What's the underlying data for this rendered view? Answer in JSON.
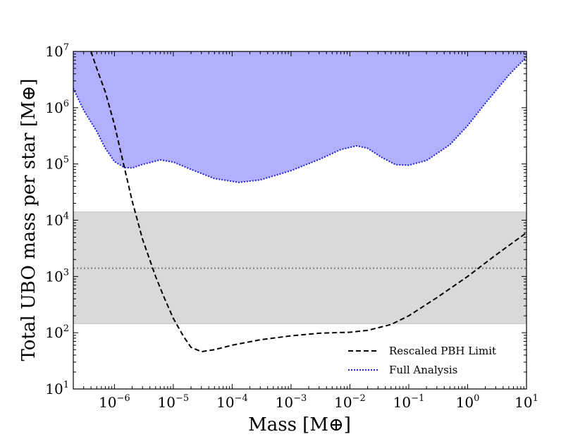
{
  "chart_data": {
    "type": "line",
    "xlabel": "Mass [M⊕]",
    "ylabel": "Total UBO mass per star [M⊕]",
    "x_scale": "log",
    "y_scale": "log",
    "xlim": [
      2e-07,
      10
    ],
    "ylim": [
      10,
      10000000
    ],
    "x_ticks": [
      {
        "value": 1e-06,
        "base": "10",
        "exp": "−6"
      },
      {
        "value": 1e-05,
        "base": "10",
        "exp": "−5"
      },
      {
        "value": 0.0001,
        "base": "10",
        "exp": "−4"
      },
      {
        "value": 0.001,
        "base": "10",
        "exp": "−3"
      },
      {
        "value": 0.01,
        "base": "10",
        "exp": "−2"
      },
      {
        "value": 0.1,
        "base": "10",
        "exp": "−1"
      },
      {
        "value": 1,
        "base": "10",
        "exp": "0"
      },
      {
        "value": 10,
        "base": "10",
        "exp": "1"
      }
    ],
    "y_ticks": [
      {
        "value": 10,
        "base": "10",
        "exp": "1"
      },
      {
        "value": 100,
        "base": "10",
        "exp": "2"
      },
      {
        "value": 1000,
        "base": "10",
        "exp": "3"
      },
      {
        "value": 10000,
        "base": "10",
        "exp": "4"
      },
      {
        "value": 100000,
        "base": "10",
        "exp": "5"
      },
      {
        "value": 1000000,
        "base": "10",
        "exp": "6"
      },
      {
        "value": 10000000,
        "base": "10",
        "exp": "7"
      }
    ],
    "band": {
      "lower": 145,
      "upper": 14000,
      "median": 1400,
      "fill_color": "#d9d9d9",
      "median_color": "#808080"
    },
    "series": [
      {
        "name": "Rescaled PBH Limit",
        "style": "dashed",
        "color": "#000000",
        "points": [
          [
            4e-07,
            10000000
          ],
          [
            5e-07,
            5000000
          ],
          [
            7e-07,
            1900000
          ],
          [
            1e-06,
            500000
          ],
          [
            1.5e-06,
            80000
          ],
          [
            2e-06,
            22000
          ],
          [
            3e-06,
            4600
          ],
          [
            5e-06,
            1000
          ],
          [
            7e-06,
            420
          ],
          [
            1e-05,
            180
          ],
          [
            1.5e-05,
            85
          ],
          [
            2e-05,
            55
          ],
          [
            3e-05,
            46
          ],
          [
            5e-05,
            50
          ],
          [
            0.0001,
            60
          ],
          [
            0.0003,
            75
          ],
          [
            0.001,
            88
          ],
          [
            0.003,
            98
          ],
          [
            0.01,
            102
          ],
          [
            0.02,
            110
          ],
          [
            0.05,
            140
          ],
          [
            0.1,
            200
          ],
          [
            0.3,
            420
          ],
          [
            1,
            1000
          ],
          [
            3,
            2400
          ],
          [
            10,
            6000
          ]
        ]
      },
      {
        "name": "Full Analysis",
        "style": "dotted",
        "color": "#1f1fdd",
        "fill_color": "#b0b0ff",
        "points": [
          [
            2e-07,
            2200000
          ],
          [
            3e-07,
            900000
          ],
          [
            5e-07,
            380000
          ],
          [
            7e-07,
            190000
          ],
          [
            1e-06,
            110000
          ],
          [
            1.5e-06,
            86000
          ],
          [
            2e-06,
            85000
          ],
          [
            3e-06,
            98000
          ],
          [
            6e-06,
            118000
          ],
          [
            1e-05,
            108000
          ],
          [
            2e-05,
            80000
          ],
          [
            5e-05,
            55000
          ],
          [
            0.00013,
            47000
          ],
          [
            0.0003,
            52000
          ],
          [
            0.001,
            76000
          ],
          [
            0.003,
            120000
          ],
          [
            0.007,
            180000
          ],
          [
            0.013,
            210000
          ],
          [
            0.02,
            190000
          ],
          [
            0.035,
            130000
          ],
          [
            0.06,
            97000
          ],
          [
            0.1,
            95000
          ],
          [
            0.2,
            115000
          ],
          [
            0.5,
            220000
          ],
          [
            1,
            480000
          ],
          [
            2,
            1200000
          ],
          [
            5,
            3800000
          ],
          [
            10,
            8000000
          ]
        ]
      }
    ],
    "legend": {
      "position": "bottom-right",
      "entries": [
        {
          "label": "Rescaled PBH Limit"
        },
        {
          "label": "Full Analysis"
        }
      ]
    }
  }
}
